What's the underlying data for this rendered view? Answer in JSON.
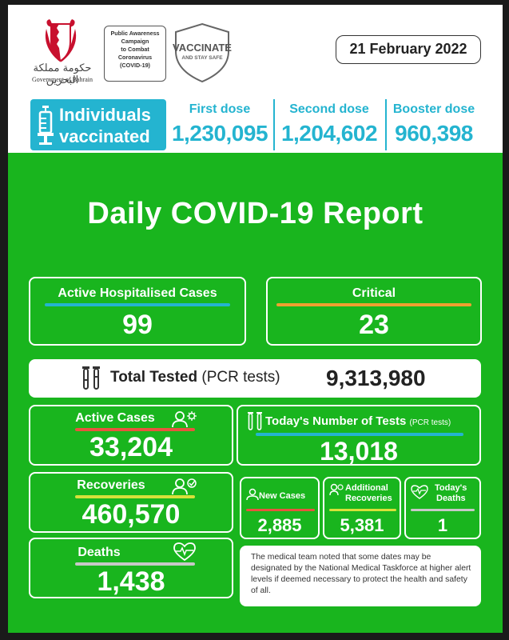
{
  "header": {
    "logo_ar": "حكومة مملكة البحرين",
    "logo_en": "Government of Bahrain",
    "campaign_lines": [
      "Public Awareness",
      "Campaign",
      "to Combat",
      "Coronavirus",
      "(COVID-19)"
    ],
    "vaccinate_title": "VACCINATE",
    "vaccinate_sub": "AND STAY SAFE",
    "date": "21 February 2022"
  },
  "vaccination": {
    "label_line1": "Individuals",
    "label_line2": "vaccinated",
    "first_dose_label": "First dose",
    "first_dose_value": "1,230,095",
    "second_dose_label": "Second dose",
    "second_dose_value": "1,204,602",
    "booster_dose_label": "Booster dose",
    "booster_dose_value": "960,398"
  },
  "title": "Daily COVID-19 Report",
  "hospitalised": {
    "label": "Active Hospitalised Cases",
    "value": "99"
  },
  "critical": {
    "label": "Critical",
    "value": "23"
  },
  "total_tested": {
    "label": "Total Tested",
    "sublabel": "(PCR tests)",
    "value": "9,313,980"
  },
  "active_cases": {
    "label": "Active Cases",
    "value": "33,204"
  },
  "recoveries": {
    "label": "Recoveries",
    "value": "460,570"
  },
  "deaths": {
    "label": "Deaths",
    "value": "1,438"
  },
  "todays_tests": {
    "label": "Today's Number of Tests",
    "sublabel": "(PCR tests)",
    "value": "13,018"
  },
  "new_cases": {
    "label": "New Cases",
    "value": "2,885"
  },
  "additional_recoveries": {
    "label_line1": "Additional",
    "label_line2": "Recoveries",
    "value": "5,381"
  },
  "todays_deaths": {
    "label_line1": "Today's",
    "label_line2": "Deaths",
    "value": "1"
  },
  "note": "The medical team noted that some dates may be designated by the National Medical Taskforce at higher alert levels if deemed necessary to protect the health and safety of all.",
  "colors": {
    "background_green": "#19b51e",
    "accent_blue": "#24b4d0",
    "accent_orange": "#f0a030",
    "accent_red": "#e8553e",
    "accent_yellow": "#d8e03a",
    "accent_grey": "#c8c8c8"
  },
  "icons": {
    "crest": "bahrain-crest-icon",
    "syringe": "syringe-icon",
    "test_tubes": "test-tubes-icon",
    "virus_person": "person-virus-icon",
    "recovered_person": "person-recovered-icon",
    "heartbeat": "heartbeat-icon"
  }
}
